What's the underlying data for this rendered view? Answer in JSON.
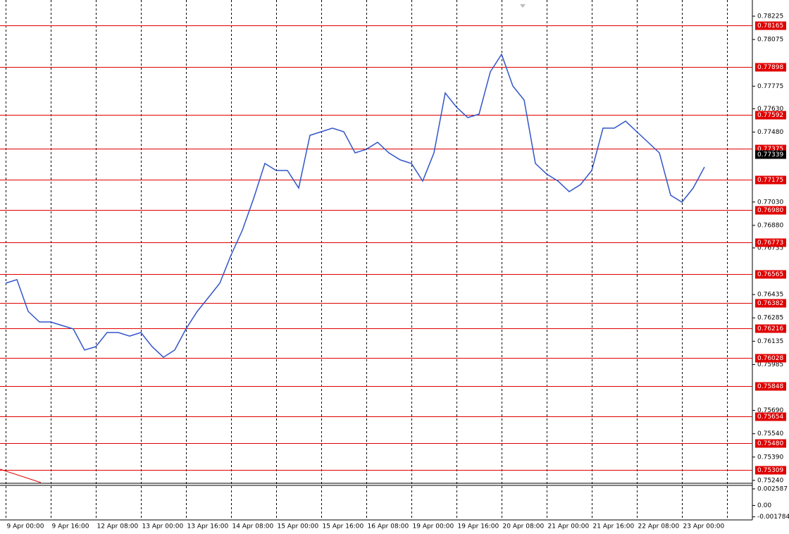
{
  "chart_data": {
    "type": "line",
    "color": "#3355c8",
    "level_color": "#e00000",
    "x_labels": [
      "9 Apr 00:00",
      "9 Apr 16:00",
      "12 Apr 08:00",
      "13 Apr 00:00",
      "13 Apr 16:00",
      "14 Apr 08:00",
      "15 Apr 00:00",
      "15 Apr 16:00",
      "16 Apr 08:00",
      "19 Apr 00:00",
      "19 Apr 16:00",
      "20 Apr 08:00",
      "21 Apr 00:00",
      "21 Apr 16:00",
      "22 Apr 08:00",
      "23 Apr 00:00"
    ],
    "values": [
      0.76508,
      0.76531,
      0.76327,
      0.76259,
      0.76259,
      0.76236,
      0.76214,
      0.76078,
      0.761,
      0.76191,
      0.76191,
      0.76168,
      0.76191,
      0.761,
      0.76032,
      0.76078,
      0.76214,
      0.76327,
      0.76417,
      0.76508,
      0.76689,
      0.76848,
      0.77052,
      0.77278,
      0.77233,
      0.77233,
      0.7712,
      0.77459,
      0.77482,
      0.77505,
      0.77482,
      0.77346,
      0.77369,
      0.77414,
      0.77346,
      0.77301,
      0.77278,
      0.77165,
      0.77346,
      0.77731,
      0.7764,
      0.77573,
      0.77595,
      0.77867,
      0.7798,
      0.77776,
      0.77686,
      0.77278,
      0.7721,
      0.77165,
      0.77097,
      0.77142,
      0.77233,
      0.77505,
      0.77505,
      0.7755,
      0.77482,
      0.77414,
      0.77346,
      0.77074,
      0.77029,
      0.7712,
      0.77255
    ],
    "ylim": [
      0.75226,
      0.7832
    ],
    "yticks": [
      {
        "value": 0.78225,
        "label": "0.78225"
      },
      {
        "value": 0.78075,
        "label": "0.78075"
      },
      {
        "value": 0.77775,
        "label": "0.77775"
      },
      {
        "value": 0.7763,
        "label": "0.77630"
      },
      {
        "value": 0.7748,
        "label": "0.77480"
      },
      {
        "value": 0.7703,
        "label": "0.77030"
      },
      {
        "value": 0.7688,
        "label": "0.76880"
      },
      {
        "value": 0.76735,
        "label": "0.76735"
      },
      {
        "value": 0.76435,
        "label": "0.76435"
      },
      {
        "value": 0.76285,
        "label": "0.76285"
      },
      {
        "value": 0.76135,
        "label": "0.76135"
      },
      {
        "value": 0.75985,
        "label": "0.75985"
      },
      {
        "value": 0.7569,
        "label": "0.75690"
      },
      {
        "value": 0.7554,
        "label": "0.75540"
      },
      {
        "value": 0.7539,
        "label": "0.75390"
      },
      {
        "value": 0.7524,
        "label": "0.75240"
      }
    ],
    "levels": [
      {
        "value": 0.78165,
        "label": "0.78165"
      },
      {
        "value": 0.77898,
        "label": "0.77898"
      },
      {
        "value": 0.77592,
        "label": "0.77592"
      },
      {
        "value": 0.77375,
        "label": "0.77375"
      },
      {
        "value": 0.77175,
        "label": "0.77175"
      },
      {
        "value": 0.7698,
        "label": "0.76980"
      },
      {
        "value": 0.76773,
        "label": "0.76773"
      },
      {
        "value": 0.76565,
        "label": "0.76565"
      },
      {
        "value": 0.76382,
        "label": "0.76382"
      },
      {
        "value": 0.76216,
        "label": "0.76216"
      },
      {
        "value": 0.76028,
        "label": "0.76028"
      },
      {
        "value": 0.75848,
        "label": "0.75848"
      },
      {
        "value": 0.75654,
        "label": "0.75654"
      },
      {
        "value": 0.7548,
        "label": "0.75480"
      },
      {
        "value": 0.75309,
        "label": "0.75309"
      }
    ],
    "current_price": {
      "value": 0.77339,
      "label": "0.77339"
    },
    "indicator_ylim": [
      -0.00226,
      0.00313
    ],
    "indicator_yticks": [
      0.002587,
      {
        "value": 0,
        "label": "0.00"
      },
      -0.001784
    ]
  }
}
